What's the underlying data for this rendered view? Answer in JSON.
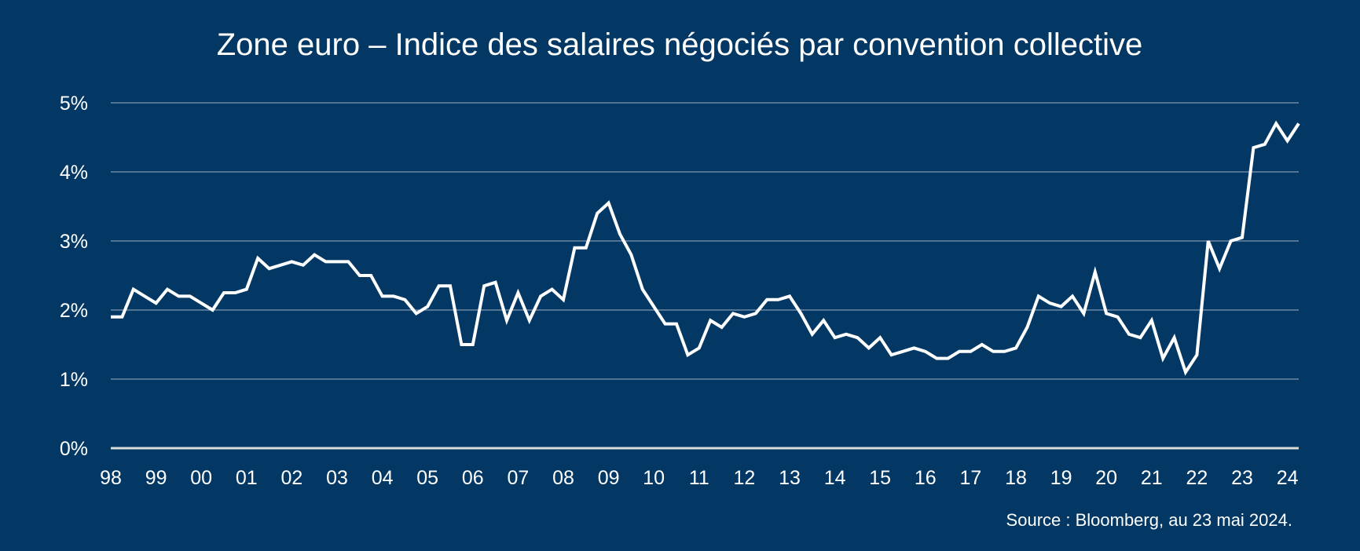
{
  "chart_data": {
    "type": "line",
    "title": "Zone euro – Indice des salaires négociés par convention collective",
    "xlabel": "",
    "ylabel": "",
    "ylim": [
      0,
      5
    ],
    "y_ticks": [
      "0%",
      "1%",
      "2%",
      "3%",
      "4%",
      "5%"
    ],
    "y_tick_values": [
      0,
      1,
      2,
      3,
      4,
      5
    ],
    "x_ticks": [
      "98",
      "99",
      "00",
      "01",
      "02",
      "03",
      "04",
      "05",
      "06",
      "07",
      "08",
      "09",
      "10",
      "11",
      "12",
      "13",
      "14",
      "15",
      "16",
      "17",
      "18",
      "19",
      "20",
      "21",
      "22",
      "23",
      "24"
    ],
    "x_start": 1998,
    "x_step": 0.25,
    "grid": true,
    "line_color": "#ffffff",
    "background": "#033865",
    "series": [
      {
        "name": "Indice des salaires négociés",
        "values": [
          1.9,
          1.9,
          2.3,
          2.2,
          2.1,
          2.3,
          2.2,
          2.2,
          2.1,
          2.0,
          2.25,
          2.25,
          2.3,
          2.75,
          2.6,
          2.65,
          2.7,
          2.65,
          2.8,
          2.7,
          2.7,
          2.7,
          2.5,
          2.5,
          2.2,
          2.2,
          2.15,
          1.95,
          2.05,
          2.35,
          2.35,
          1.5,
          1.5,
          2.35,
          2.4,
          1.85,
          2.25,
          1.85,
          2.2,
          2.3,
          2.15,
          2.9,
          2.9,
          3.4,
          3.55,
          3.1,
          2.8,
          2.3,
          2.05,
          1.8,
          1.8,
          1.35,
          1.45,
          1.85,
          1.75,
          1.95,
          1.9,
          1.95,
          2.15,
          2.15,
          2.2,
          1.95,
          1.65,
          1.85,
          1.6,
          1.65,
          1.6,
          1.45,
          1.6,
          1.35,
          1.4,
          1.45,
          1.4,
          1.3,
          1.3,
          1.4,
          1.4,
          1.5,
          1.4,
          1.4,
          1.45,
          1.75,
          2.2,
          2.1,
          2.05,
          2.2,
          1.95,
          2.55,
          1.95,
          1.9,
          1.65,
          1.6,
          1.85,
          1.3,
          1.6,
          1.1,
          1.35,
          3.0,
          2.6,
          3.0,
          3.05,
          4.35,
          4.4,
          4.7,
          4.45,
          4.7
        ]
      }
    ],
    "source": "Source : Bloomberg, au 23 mai 2024."
  }
}
